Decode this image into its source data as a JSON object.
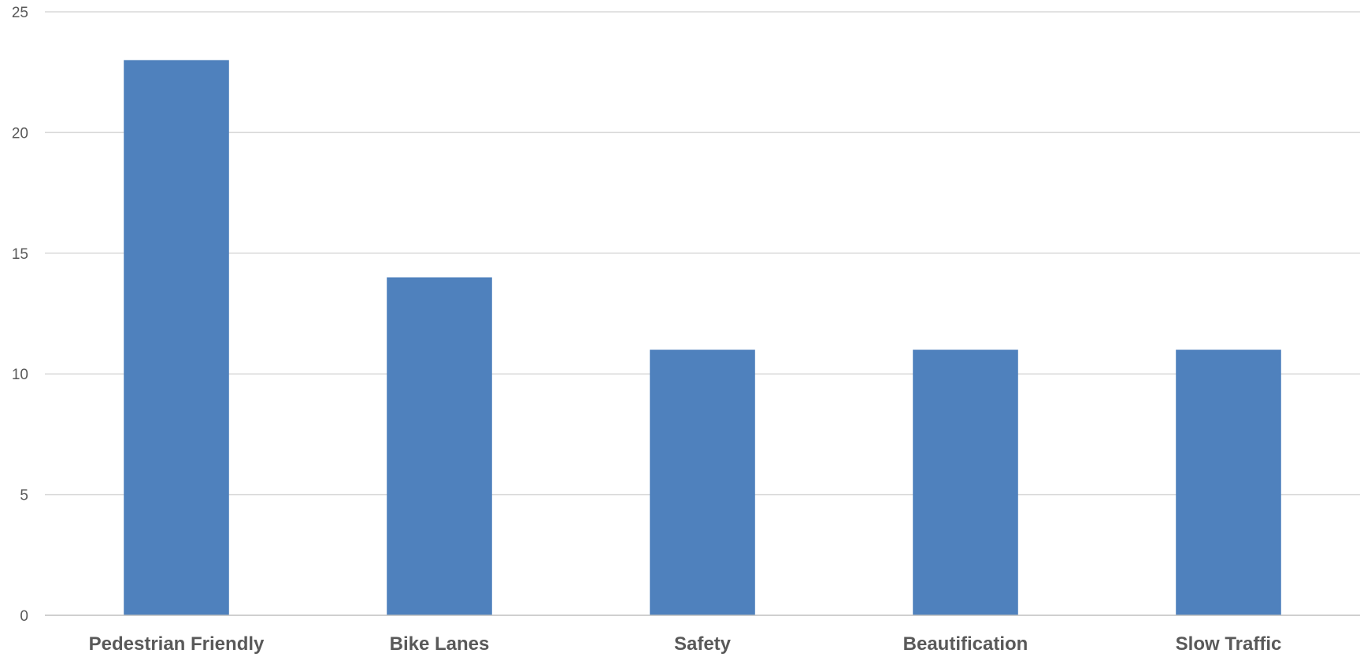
{
  "chart_data": {
    "type": "bar",
    "title": "",
    "xlabel": "",
    "ylabel": "",
    "categories": [
      "Pedestrian Friendly",
      "Bike Lanes",
      "Safety",
      "Beautification",
      "Slow Traffic"
    ],
    "values": [
      23,
      14,
      11,
      11,
      11
    ],
    "ylim": [
      0,
      25
    ],
    "yticks": [
      0,
      5,
      10,
      15,
      20,
      25
    ],
    "ytick_labels": [
      "0",
      "5",
      "10",
      "15",
      "20",
      "25"
    ],
    "grid": true,
    "legend": "none",
    "bar_color": "#4f81bd",
    "grid_color": "#d9d9d9",
    "label_color": "#595959"
  }
}
